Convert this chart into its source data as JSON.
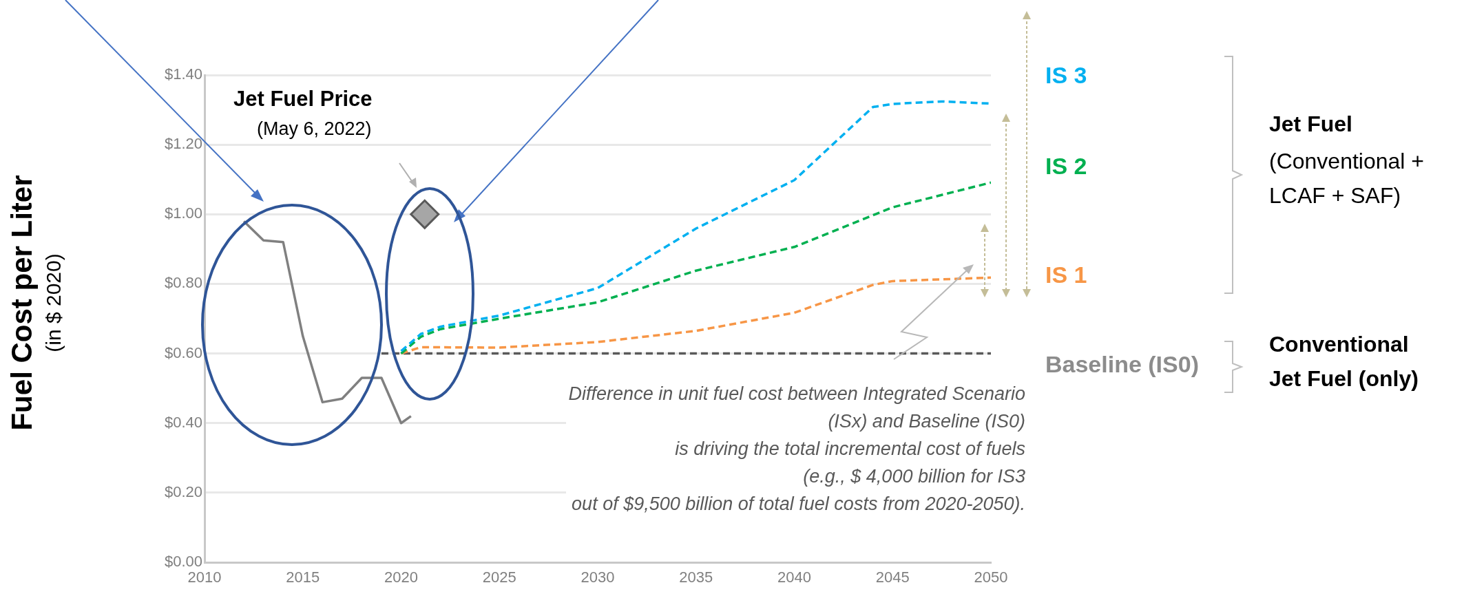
{
  "chart_data": {
    "type": "line",
    "ylabel": "Fuel Cost per Liter",
    "xlim": [
      2010,
      2050
    ],
    "xticks": [
      2010,
      2015,
      2020,
      2025,
      2030,
      2035,
      2040,
      2045,
      2050
    ],
    "ylim": [
      0,
      1.4
    ],
    "yticks": [
      {
        "value": 0,
        "label": "$0.00"
      },
      {
        "value": 0.2,
        "label": "$0.20"
      },
      {
        "value": 0.4,
        "label": "$0.40"
      },
      {
        "value": 0.6,
        "label": "$0.60"
      },
      {
        "value": 0.8,
        "label": "$0.80"
      },
      {
        "value": 1,
        "label": "$1.00"
      },
      {
        "value": 1.2,
        "label": "$1.20"
      },
      {
        "value": 1.4,
        "label": "$1.40"
      }
    ],
    "grid": "y",
    "series": [
      {
        "type": "line",
        "color": "#808080",
        "line_style": "solid",
        "marker": "none",
        "x": [
          2012,
          2013,
          2014,
          2015,
          2016,
          2017,
          2018,
          2019,
          2020,
          2020.5
        ],
        "values": [
          0.98,
          0.925,
          0.92,
          0.65,
          0.46,
          0.47,
          0.53,
          0.53,
          0.4,
          0.42
        ]
      },
      {
        "type": "scatter",
        "color": "#a6a6a6",
        "marker": "diamond",
        "x": [
          2021.2
        ],
        "values": [
          1.0
        ]
      },
      {
        "type": "line",
        "name": "Baseline (IS0)",
        "color": "#595959",
        "line_style": "dashed",
        "marker": "none",
        "x": [
          2019,
          2020,
          2025,
          2030,
          2035,
          2040,
          2045,
          2050
        ],
        "values": [
          0.6,
          0.6,
          0.6,
          0.6,
          0.6,
          0.6,
          0.6,
          0.6
        ]
      },
      {
        "type": "line",
        "name": "IS 1",
        "color": "#f79646",
        "line_style": "dashed",
        "marker": "none",
        "x": [
          2020,
          2021,
          2025,
          2030,
          2035,
          2040,
          2044,
          2045,
          2050
        ],
        "values": [
          0.6,
          0.618,
          0.617,
          0.633,
          0.665,
          0.717,
          0.797,
          0.808,
          0.818
        ]
      },
      {
        "type": "line",
        "name": "IS 2",
        "color": "#00b050",
        "line_style": "dashed",
        "marker": "none",
        "x": [
          2020,
          2021,
          2022,
          2025,
          2030,
          2035,
          2040,
          2045,
          2050
        ],
        "values": [
          0.6,
          0.648,
          0.67,
          0.7,
          0.747,
          0.838,
          0.906,
          1.02,
          1.091
        ]
      },
      {
        "type": "line",
        "name": "IS 3",
        "color": "#00b0f0",
        "line_style": "dashed",
        "marker": "none",
        "x": [
          2020,
          2021,
          2022,
          2025,
          2030,
          2035,
          2040,
          2044,
          2045,
          2047.5,
          2050
        ],
        "values": [
          0.607,
          0.656,
          0.677,
          0.709,
          0.788,
          0.959,
          1.098,
          1.308,
          1.317,
          1.324,
          1.318
        ]
      }
    ],
    "annotations": [
      "Jet Fuel Price",
      "(May 6, 2022)",
      "Difference in unit fuel cost between Integrated Scenario\n(ISx) and Baseline (IS0)\nis driving the total incremental cost of fuels\n(e.g., $ 4,000 billion for IS3\nout of $9,500 billion of total fuel costs from 2020-2050).",
      "Jet Fuel",
      "(Conventional +\nLCAF + SAF)",
      "Conventional\nJet Fuel (only)",
      "(in $ 2020)"
    ]
  }
}
